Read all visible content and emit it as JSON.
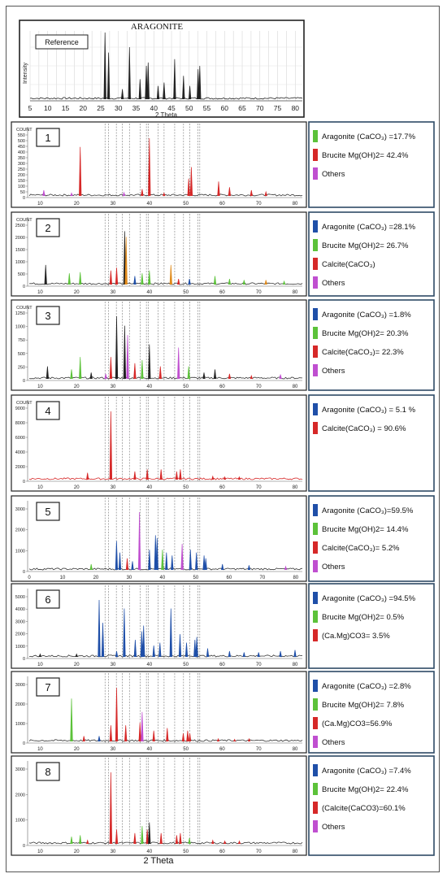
{
  "colors": {
    "aragonite": "#1f4fa8",
    "brucite": "#5cc23a",
    "calcite": "#d62828",
    "others": "#c04fd0",
    "dolomite": "#d62828",
    "trace": "#222222",
    "orange": "#e08a1a",
    "legend_border": "#2e4a66"
  },
  "x_axis_label": "2 Theta",
  "chart_data": {
    "type": "line",
    "reference": {
      "title": "ARAGONITE",
      "label": "Reference",
      "ylabel": "Intensity",
      "xlabel": "2 Theta",
      "xlim": [
        5,
        82
      ],
      "ticks": [
        "5",
        "10",
        "15",
        "20",
        "25",
        "30",
        "35",
        "40",
        "45",
        "50",
        "55",
        "60",
        "65",
        "70",
        "75",
        "80"
      ],
      "peaks": [
        [
          26.2,
          1.0
        ],
        [
          27.2,
          0.7
        ],
        [
          31.1,
          0.15
        ],
        [
          33.1,
          0.78
        ],
        [
          36.1,
          0.3
        ],
        [
          37.9,
          0.5
        ],
        [
          38.4,
          0.55
        ],
        [
          41.2,
          0.2
        ],
        [
          42.9,
          0.25
        ],
        [
          45.9,
          0.6
        ],
        [
          48.4,
          0.35
        ],
        [
          50.2,
          0.2
        ],
        [
          52.5,
          0.45
        ],
        [
          53.0,
          0.5
        ]
      ]
    },
    "samples": [
      {
        "id": "1",
        "count_label": "COUNT",
        "y_ticks": [
          "0",
          "50",
          "100",
          "150",
          "200",
          "250",
          "300",
          "350",
          "400",
          "450",
          "500",
          "550"
        ],
        "x_ticks": [
          "10",
          "20",
          "30",
          "40",
          "50",
          "60",
          "70",
          "80"
        ],
        "xlim": [
          7,
          82
        ],
        "peaks": [
          [
            11,
            0.1,
            "others"
          ],
          [
            18.6,
            0.05,
            "others"
          ],
          [
            21,
            0.85,
            "calcite"
          ],
          [
            33,
            0.06,
            "others"
          ],
          [
            38,
            0.12,
            "calcite"
          ],
          [
            40,
            1.0,
            "calcite"
          ],
          [
            44,
            0.05,
            "calcite"
          ],
          [
            50.8,
            0.3,
            "calcite"
          ],
          [
            51.5,
            0.5,
            "calcite"
          ],
          [
            59,
            0.25,
            "calcite"
          ],
          [
            62,
            0.15,
            "calcite"
          ],
          [
            68,
            0.1,
            "calcite"
          ],
          [
            72,
            0.07,
            "calcite"
          ]
        ],
        "legend": [
          {
            "text": "Aragonite (CaCO₃) =17.7%",
            "color": "brucite"
          },
          {
            "text": "Brucite Mg(OH)2= 42.4%",
            "color": "calcite"
          },
          {
            "text": "Others",
            "color": "others"
          }
        ]
      },
      {
        "id": "2",
        "count_label": "COUNT",
        "y_ticks": [
          "0",
          "500",
          "1000",
          "1500",
          "2000",
          "2500"
        ],
        "x_ticks": [
          "10",
          "20",
          "30",
          "40",
          "50",
          "60",
          "70",
          "80"
        ],
        "xlim": [
          7,
          82
        ],
        "peaks": [
          [
            11.5,
            0.35,
            "trace"
          ],
          [
            18,
            0.2,
            "brucite"
          ],
          [
            21,
            0.22,
            "brucite"
          ],
          [
            29.4,
            0.25,
            "calcite"
          ],
          [
            31,
            0.3,
            "calcite"
          ],
          [
            33.2,
            0.95,
            "trace"
          ],
          [
            33.6,
            0.85,
            "orange"
          ],
          [
            36,
            0.15,
            "aragonite"
          ],
          [
            38,
            0.2,
            "brucite"
          ],
          [
            40,
            0.25,
            "brucite"
          ],
          [
            45.9,
            0.35,
            "orange"
          ],
          [
            48,
            0.1,
            "calcite"
          ],
          [
            51,
            0.1,
            "aragonite"
          ],
          [
            58,
            0.15,
            "brucite"
          ],
          [
            62,
            0.1,
            "brucite"
          ],
          [
            66,
            0.08,
            "brucite"
          ],
          [
            72,
            0.08,
            "orange"
          ],
          [
            77,
            0.06,
            "brucite"
          ]
        ],
        "legend": [
          {
            "text": "Aragonite (CaCO₃) =28.1%",
            "color": "aragonite"
          },
          {
            "text": "Brucite Mg(OH)2= 26.7%",
            "color": "brucite"
          },
          {
            "text": "Calcite(CaCO₃)",
            "color": "calcite"
          },
          {
            "text": "Others",
            "color": "others"
          }
        ]
      },
      {
        "id": "3",
        "count_label": "COUNT",
        "y_ticks": [
          "0",
          "250",
          "500",
          "750",
          "1000",
          "1250"
        ],
        "x_ticks": [
          "10",
          "20",
          "30",
          "40",
          "50",
          "60",
          "70",
          "80"
        ],
        "xlim": [
          7,
          82
        ],
        "peaks": [
          [
            12,
            0.2,
            "trace"
          ],
          [
            18.6,
            0.15,
            "brucite"
          ],
          [
            21,
            0.35,
            "brucite"
          ],
          [
            24,
            0.1,
            "trace"
          ],
          [
            28,
            0.08,
            "others"
          ],
          [
            29.4,
            0.35,
            "calcite"
          ],
          [
            31,
            1.0,
            "trace"
          ],
          [
            33.2,
            0.85,
            "trace"
          ],
          [
            34,
            0.7,
            "others"
          ],
          [
            36,
            0.25,
            "calcite"
          ],
          [
            38,
            0.3,
            "brucite"
          ],
          [
            40,
            0.55,
            "trace"
          ],
          [
            43,
            0.2,
            "calcite"
          ],
          [
            48,
            0.5,
            "others"
          ],
          [
            50.8,
            0.2,
            "brucite"
          ],
          [
            55,
            0.1,
            "trace"
          ],
          [
            58,
            0.15,
            "trace"
          ],
          [
            62,
            0.08,
            "calcite"
          ],
          [
            68,
            0.05,
            "calcite"
          ],
          [
            76,
            0.07,
            "others"
          ]
        ],
        "legend": [
          {
            "text": "Aragonite (CaCO₃) =1.8%",
            "color": "aragonite"
          },
          {
            "text": "Brucite Mg(OH)2= 20.3%",
            "color": "brucite"
          },
          {
            "text": "Calcite(CaCO₃)= 22.3%",
            "color": "calcite"
          },
          {
            "text": "Others",
            "color": "others"
          }
        ]
      },
      {
        "id": "4",
        "count_label": "COUNT",
        "y_ticks": [
          "0",
          "2000",
          "4000",
          "6000",
          "8000",
          "9000"
        ],
        "x_ticks": [
          "10",
          "20",
          "30",
          "40",
          "50",
          "60",
          "70",
          "80"
        ],
        "xlim": [
          7,
          82
        ],
        "peaks": [
          [
            23,
            0.1,
            "calcite"
          ],
          [
            29.4,
            1.0,
            "calcite"
          ],
          [
            36,
            0.12,
            "calcite"
          ],
          [
            39.4,
            0.15,
            "calcite"
          ],
          [
            43.2,
            0.15,
            "calcite"
          ],
          [
            47.5,
            0.12,
            "calcite"
          ],
          [
            48.5,
            0.15,
            "calcite"
          ],
          [
            57.4,
            0.05,
            "calcite"
          ],
          [
            60.7,
            0.04,
            "calcite"
          ],
          [
            64.7,
            0.04,
            "calcite"
          ]
        ],
        "legend": [
          {
            "text": "Aragonite (CaCO₃) = 5.1 %",
            "color": "aragonite"
          },
          {
            "text": "Calcite(CaCO₃) = 90.6%",
            "color": "calcite"
          }
        ]
      },
      {
        "id": "5",
        "count_label": "",
        "y_ticks": [
          "0",
          "1000",
          "2000",
          "3000"
        ],
        "x_ticks": [
          "0",
          "10",
          "20",
          "30",
          "40",
          "50",
          "60",
          "70",
          "80"
        ],
        "xlim": [
          0,
          82
        ],
        "peaks": [
          [
            18.6,
            0.1,
            "brucite"
          ],
          [
            26.2,
            0.5,
            "aragonite"
          ],
          [
            27.2,
            0.3,
            "aragonite"
          ],
          [
            29.4,
            0.2,
            "calcite"
          ],
          [
            31,
            0.15,
            "aragonite"
          ],
          [
            33.1,
            1.0,
            "others"
          ],
          [
            36.1,
            0.35,
            "aragonite"
          ],
          [
            37.9,
            0.6,
            "aragonite"
          ],
          [
            38.4,
            0.55,
            "aragonite"
          ],
          [
            40,
            0.35,
            "brucite"
          ],
          [
            41.2,
            0.3,
            "aragonite"
          ],
          [
            42.9,
            0.25,
            "aragonite"
          ],
          [
            45.9,
            0.45,
            "others"
          ],
          [
            48.4,
            0.35,
            "aragonite"
          ],
          [
            50.2,
            0.3,
            "aragonite"
          ],
          [
            52.5,
            0.25,
            "aragonite"
          ],
          [
            53,
            0.2,
            "aragonite"
          ],
          [
            58,
            0.1,
            "aragonite"
          ],
          [
            66,
            0.08,
            "aragonite"
          ],
          [
            77,
            0.06,
            "others"
          ]
        ],
        "legend": [
          {
            "text": "Aragonite (CaCO₃)=59.5%",
            "color": "aragonite"
          },
          {
            "text": "Brucite Mg(OH)2= 14.4%",
            "color": "brucite"
          },
          {
            "text": "Calcite(CaCO₃)= 5.2%",
            "color": "calcite"
          },
          {
            "text": "Others",
            "color": "others"
          }
        ]
      },
      {
        "id": "6",
        "count_label": "",
        "y_ticks": [
          "0",
          "1000",
          "2000",
          "3000",
          "4000",
          "5000"
        ],
        "x_ticks": [
          "10",
          "20",
          "30",
          "40",
          "50",
          "60",
          "70",
          "80"
        ],
        "xlim": [
          7,
          82
        ],
        "peaks": [
          [
            10,
            0.05,
            "trace"
          ],
          [
            20,
            0.05,
            "trace"
          ],
          [
            26.2,
            1.0,
            "aragonite"
          ],
          [
            27.2,
            0.6,
            "aragonite"
          ],
          [
            31,
            0.1,
            "aragonite"
          ],
          [
            33.1,
            0.85,
            "aragonite"
          ],
          [
            36.1,
            0.3,
            "aragonite"
          ],
          [
            37.9,
            0.45,
            "aragonite"
          ],
          [
            38.4,
            0.55,
            "aragonite"
          ],
          [
            41.2,
            0.2,
            "aragonite"
          ],
          [
            42.9,
            0.25,
            "aragonite"
          ],
          [
            45.9,
            0.85,
            "aragonite"
          ],
          [
            48.4,
            0.4,
            "aragonite"
          ],
          [
            50.2,
            0.25,
            "aragonite"
          ],
          [
            52.5,
            0.3,
            "aragonite"
          ],
          [
            53,
            0.35,
            "aragonite"
          ],
          [
            56,
            0.15,
            "aragonite"
          ],
          [
            62,
            0.1,
            "aragonite"
          ],
          [
            66,
            0.08,
            "aragonite"
          ],
          [
            70,
            0.08,
            "aragonite"
          ],
          [
            76,
            0.1,
            "aragonite"
          ],
          [
            80,
            0.12,
            "aragonite"
          ]
        ],
        "legend": [
          {
            "text": "Aragonite (CaCO₃) =94.5%",
            "color": "aragonite"
          },
          {
            "text": "Brucite Mg(OH)2= 0.5%",
            "color": "brucite"
          },
          {
            "text": "(Ca.Mg)CO3= 3.5%",
            "color": "dolomite"
          }
        ]
      },
      {
        "id": "7",
        "count_label": "",
        "y_ticks": [
          "0",
          "1000",
          "2000",
          "3000"
        ],
        "x_ticks": [
          "10",
          "20",
          "30",
          "40",
          "50",
          "60",
          "70",
          "80"
        ],
        "xlim": [
          7,
          82
        ],
        "peaks": [
          [
            18.6,
            0.8,
            "brucite"
          ],
          [
            22,
            0.1,
            "calcite"
          ],
          [
            26.2,
            0.1,
            "aragonite"
          ],
          [
            29.4,
            0.3,
            "calcite"
          ],
          [
            31,
            1.0,
            "calcite"
          ],
          [
            33.5,
            0.3,
            "calcite"
          ],
          [
            37.4,
            0.35,
            "calcite"
          ],
          [
            38,
            0.55,
            "others"
          ],
          [
            41.2,
            0.2,
            "calcite"
          ],
          [
            44.9,
            0.25,
            "calcite"
          ],
          [
            49.3,
            0.15,
            "calcite"
          ],
          [
            50.5,
            0.2,
            "calcite"
          ],
          [
            51.1,
            0.15,
            "calcite"
          ],
          [
            58.9,
            0.05,
            "calcite"
          ],
          [
            63.4,
            0.04,
            "calcite"
          ],
          [
            67.4,
            0.05,
            "calcite"
          ]
        ],
        "legend": [
          {
            "text": "Aragonite (CaCO₃) =2.8%",
            "color": "aragonite"
          },
          {
            "text": "Brucite Mg(OH)2= 7.8%",
            "color": "brucite"
          },
          {
            "text": "(Ca.Mg)CO3=56.9%",
            "color": "dolomite"
          },
          {
            "text": "Others",
            "color": "others"
          }
        ]
      },
      {
        "id": "8",
        "count_label": "",
        "y_ticks": [
          "0",
          "1000",
          "2000",
          "3000"
        ],
        "x_ticks": [
          "10",
          "20",
          "30",
          "40",
          "50",
          "60",
          "70",
          "80"
        ],
        "xlim": [
          7,
          82
        ],
        "peaks": [
          [
            18.6,
            0.1,
            "brucite"
          ],
          [
            21,
            0.12,
            "brucite"
          ],
          [
            23,
            0.05,
            "calcite"
          ],
          [
            29.4,
            1.0,
            "calcite"
          ],
          [
            31,
            0.2,
            "calcite"
          ],
          [
            36,
            0.15,
            "calcite"
          ],
          [
            38,
            0.25,
            "brucite"
          ],
          [
            39.4,
            0.2,
            "calcite"
          ],
          [
            40,
            0.3,
            "trace"
          ],
          [
            43.2,
            0.15,
            "calcite"
          ],
          [
            47.5,
            0.12,
            "calcite"
          ],
          [
            48.5,
            0.15,
            "calcite"
          ],
          [
            51,
            0.08,
            "brucite"
          ],
          [
            57.4,
            0.05,
            "calcite"
          ],
          [
            60.7,
            0.04,
            "calcite"
          ],
          [
            64.7,
            0.04,
            "calcite"
          ]
        ],
        "legend": [
          {
            "text": "Aragonite (CaCO₃) =7.4%",
            "color": "aragonite"
          },
          {
            "text": "Brucite Mg(OH)2= 22.4%",
            "color": "brucite"
          },
          {
            "text": "(Calcite(CaCO3)=60.1%",
            "color": "calcite"
          },
          {
            "text": "Others",
            "color": "others"
          }
        ]
      }
    ],
    "guide_lines_2theta": [
      26.2,
      27.2,
      29.4,
      31.1,
      33.1,
      36.1,
      37.9,
      38.4,
      41.2,
      42.9,
      45.9,
      48.4,
      50.2,
      52.5,
      53.0
    ]
  }
}
